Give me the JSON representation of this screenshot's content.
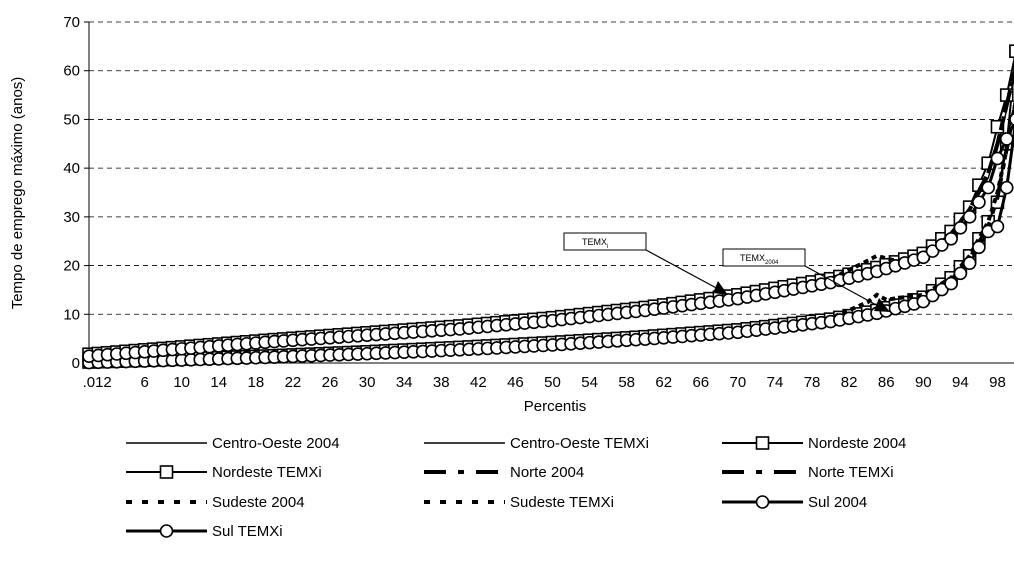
{
  "chart_data": {
    "type": "line",
    "title": "",
    "xlabel": "Percentis",
    "ylabel": "Tempo de emprego máximo (anos)",
    "ylim": [
      0,
      70
    ],
    "xlim": [
      0,
      100
    ],
    "grid": true,
    "y_ticks": [
      0,
      10,
      20,
      30,
      40,
      50,
      60,
      70
    ],
    "x_tick_labels": [
      ".01",
      "2",
      "6",
      "10",
      "14",
      "18",
      "22",
      "26",
      "30",
      "34",
      "38",
      "42",
      "46",
      "50",
      "54",
      "58",
      "62",
      "66",
      "70",
      "74",
      "78",
      "82",
      "86",
      "90",
      "94",
      "98"
    ],
    "x_tick_values": [
      0,
      2,
      6,
      10,
      14,
      18,
      22,
      26,
      30,
      34,
      38,
      42,
      46,
      50,
      54,
      58,
      62,
      66,
      70,
      74,
      78,
      82,
      86,
      90,
      94,
      98
    ],
    "series": [
      {
        "name": "Centro-Oeste 2004",
        "style": "thin",
        "color": "#000000",
        "x": [
          0,
          10,
          20,
          30,
          40,
          50,
          60,
          70,
          80,
          85,
          90,
          93,
          95,
          97,
          98,
          99,
          100
        ],
        "y": [
          0.1,
          0.6,
          1.2,
          2,
          2.8,
          3.8,
          5,
          6.5,
          8.8,
          10.5,
          13,
          17,
          21,
          28,
          35,
          45,
          55
        ]
      },
      {
        "name": "Centro-Oeste TEMXi",
        "style": "thin",
        "color": "#000000",
        "x": [
          0,
          10,
          20,
          30,
          40,
          50,
          60,
          70,
          80,
          85,
          90,
          93,
          95,
          97,
          98,
          99,
          100
        ],
        "y": [
          1.5,
          3,
          4.5,
          5.8,
          7.2,
          8.9,
          11,
          13.5,
          17,
          19.5,
          22.5,
          26.5,
          31,
          38,
          44,
          52,
          60
        ]
      },
      {
        "name": "Nordeste 2004",
        "style": "square",
        "color": "#000000",
        "x": [
          0,
          10,
          20,
          30,
          40,
          50,
          60,
          70,
          80,
          85,
          90,
          93,
          95,
          97,
          98,
          99,
          100
        ],
        "y": [
          0.2,
          0.8,
          1.5,
          2.3,
          3.2,
          4.2,
          5.4,
          6.8,
          9,
          10.8,
          13.5,
          17.5,
          22,
          29,
          33,
          45,
          64
        ]
      },
      {
        "name": "Nordeste TEMXi",
        "style": "square",
        "color": "#000000",
        "x": [
          0,
          10,
          20,
          30,
          40,
          50,
          60,
          70,
          80,
          85,
          90,
          93,
          95,
          97,
          98,
          99,
          100
        ],
        "y": [
          1.8,
          3.3,
          4.8,
          6.2,
          7.6,
          9.3,
          11.4,
          14,
          17.3,
          19.6,
          22.5,
          27,
          32,
          41,
          48.5,
          55,
          64
        ]
      },
      {
        "name": "Norte 2004",
        "style": "longdash",
        "color": "#000000",
        "x": [
          0,
          10,
          20,
          30,
          40,
          50,
          60,
          70,
          80,
          85,
          90,
          93,
          95,
          97,
          98,
          99,
          100
        ],
        "y": [
          0.1,
          0.7,
          1.3,
          2.1,
          3,
          4,
          5.2,
          6.6,
          8.8,
          10.5,
          13,
          17,
          21.5,
          28,
          34,
          44,
          54
        ]
      },
      {
        "name": "Norte TEMXi",
        "style": "longdash",
        "color": "#000000",
        "x": [
          0,
          10,
          20,
          30,
          40,
          50,
          60,
          70,
          80,
          85,
          90,
          93,
          95,
          97,
          98,
          99,
          100
        ],
        "y": [
          1.6,
          3.1,
          4.6,
          6,
          7.4,
          9.1,
          11.2,
          13.7,
          17,
          19.3,
          22.3,
          26.5,
          31.5,
          39,
          45,
          53,
          61
        ]
      },
      {
        "name": "Sudeste 2004",
        "style": "dotted",
        "color": "#000000",
        "x": [
          0,
          10,
          20,
          30,
          40,
          50,
          60,
          70,
          80,
          84,
          85,
          86,
          88,
          90,
          93,
          95,
          97,
          98,
          99,
          100
        ],
        "y": [
          0.2,
          0.8,
          1.4,
          2.2,
          3.1,
          4.1,
          5.3,
          6.8,
          9.2,
          12.5,
          14,
          13,
          13.5,
          14,
          17.5,
          22,
          29,
          35,
          44,
          54
        ]
      },
      {
        "name": "Sudeste TEMXi",
        "style": "dotted",
        "color": "#000000",
        "x": [
          0,
          10,
          20,
          30,
          40,
          50,
          60,
          70,
          80,
          84,
          85,
          86,
          88,
          90,
          93,
          95,
          97,
          98,
          99,
          100
        ],
        "y": [
          1.7,
          3.2,
          4.7,
          6.1,
          7.5,
          9.2,
          11.3,
          13.8,
          17.2,
          21,
          22,
          21.5,
          20.5,
          21.5,
          26.5,
          31.5,
          39,
          45,
          53,
          61
        ]
      },
      {
        "name": "Sul 2004",
        "style": "circle",
        "color": "#000000",
        "x": [
          0,
          10,
          20,
          30,
          40,
          50,
          60,
          70,
          80,
          85,
          90,
          93,
          95,
          97,
          98,
          99,
          100
        ],
        "y": [
          0.1,
          0.6,
          1.2,
          1.9,
          2.7,
          3.7,
          4.9,
          6.3,
          8.5,
          10.2,
          12.6,
          16.3,
          20.5,
          27,
          28,
          36,
          50
        ]
      },
      {
        "name": "Sul TEMXi",
        "style": "circle",
        "color": "#000000",
        "x": [
          0,
          10,
          20,
          30,
          40,
          50,
          60,
          70,
          80,
          85,
          90,
          93,
          95,
          97,
          98,
          99,
          100
        ],
        "y": [
          1.4,
          2.9,
          4.4,
          5.7,
          7,
          8.7,
          10.8,
          13.2,
          16.5,
          18.8,
          21.7,
          25.5,
          30,
          36,
          42,
          46,
          50
        ]
      }
    ],
    "annotations": [
      {
        "text": "TEMXi",
        "sub_text": "i",
        "main": "TEMX"
      },
      {
        "text": "TEMX2004",
        "sub_text": "2004",
        "main": "TEMX"
      }
    ],
    "legend_placement": "bottom"
  }
}
